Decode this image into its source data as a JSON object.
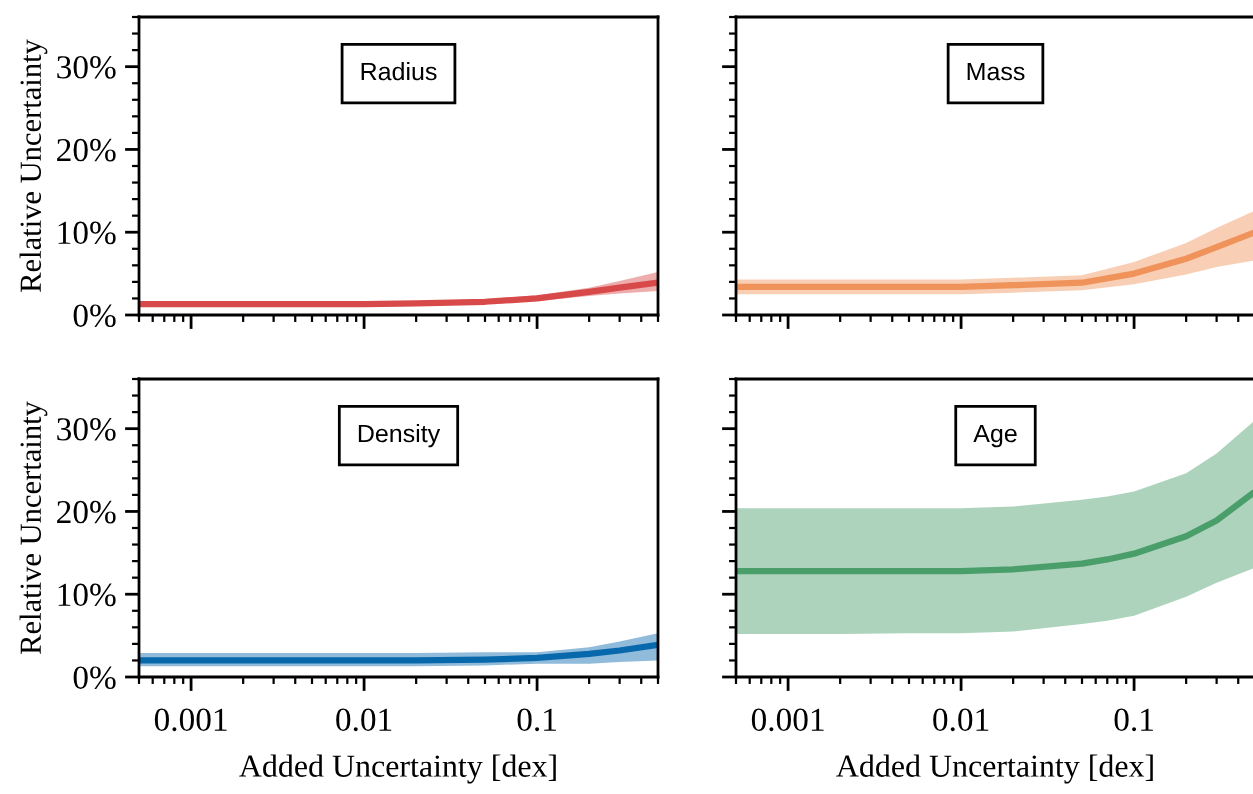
{
  "chart_data": [
    {
      "type": "line",
      "log": "x",
      "ylabel": "Relative Uncertainty",
      "annotations": [
        "Radius"
      ],
      "tick_labels": "y",
      "x": [
        0.0005,
        0.001,
        0.002,
        0.005,
        0.01,
        0.02,
        0.05,
        0.1,
        0.2,
        0.3,
        0.5
      ],
      "series": [
        {
          "color": "#d84a4a",
          "values": [
            1.3,
            1.3,
            1.3,
            1.3,
            1.3,
            1.4,
            1.6,
            2.0,
            2.8,
            3.3,
            3.9
          ],
          "lower": [
            1.0,
            1.0,
            1.0,
            1.0,
            1.0,
            1.1,
            1.3,
            1.7,
            2.3,
            2.6,
            2.9
          ],
          "upper": [
            1.6,
            1.6,
            1.6,
            1.6,
            1.6,
            1.7,
            1.9,
            2.4,
            3.3,
            4.1,
            5.2
          ]
        }
      ],
      "xlim": [
        0.0005,
        0.5
      ],
      "ylim": [
        0,
        36
      ],
      "xticks": [
        {
          "value": 0.001,
          "label": null
        },
        {
          "value": 0.01,
          "label": null
        },
        {
          "value": 0.1,
          "label": null
        }
      ],
      "yticks": [
        {
          "value": 0,
          "label": "0%"
        },
        {
          "value": 10,
          "label": "10%"
        },
        {
          "value": 20,
          "label": "20%"
        },
        {
          "value": 30,
          "label": "30%"
        }
      ]
    },
    {
      "type": "line",
      "log": "x",
      "annotations": [
        "Mass"
      ],
      "tick_labels": false,
      "x": [
        0.0005,
        0.001,
        0.002,
        0.005,
        0.01,
        0.02,
        0.05,
        0.1,
        0.2,
        0.3,
        0.5
      ],
      "series": [
        {
          "color": "#f0935a",
          "values": [
            3.4,
            3.4,
            3.4,
            3.4,
            3.4,
            3.6,
            3.9,
            5.0,
            6.8,
            8.2,
            10.0
          ],
          "lower": [
            2.5,
            2.5,
            2.5,
            2.5,
            2.5,
            2.7,
            3.0,
            3.7,
            4.9,
            5.8,
            6.6
          ],
          "upper": [
            4.3,
            4.3,
            4.3,
            4.3,
            4.3,
            4.5,
            4.8,
            6.4,
            8.7,
            10.5,
            12.6
          ]
        }
      ],
      "xlim": [
        0.0005,
        0.5
      ],
      "ylim": [
        0,
        36
      ],
      "xticks": [
        {
          "value": 0.001,
          "label": null
        },
        {
          "value": 0.01,
          "label": null
        },
        {
          "value": 0.1,
          "label": null
        }
      ],
      "yticks": [
        {
          "value": 0,
          "label": null
        },
        {
          "value": 10,
          "label": null
        },
        {
          "value": 20,
          "label": null
        },
        {
          "value": 30,
          "label": null
        }
      ]
    },
    {
      "type": "line",
      "log": "x",
      "xlabel": "Added Uncertainty [dex]",
      "ylabel": "Relative Uncertainty",
      "annotations": [
        "Density"
      ],
      "x": [
        0.0005,
        0.001,
        0.002,
        0.005,
        0.01,
        0.02,
        0.05,
        0.1,
        0.2,
        0.3,
        0.5
      ],
      "series": [
        {
          "color": "#0868ac",
          "values": [
            2.0,
            2.0,
            2.0,
            2.0,
            2.0,
            2.0,
            2.1,
            2.3,
            2.8,
            3.2,
            3.9
          ],
          "lower": [
            1.3,
            1.3,
            1.3,
            1.3,
            1.3,
            1.3,
            1.4,
            1.6,
            1.6,
            1.8,
            2.0
          ],
          "upper": [
            2.9,
            2.9,
            2.9,
            2.9,
            2.9,
            2.9,
            3.0,
            3.0,
            3.6,
            4.3,
            5.3
          ]
        }
      ],
      "xlim": [
        0.0005,
        0.5
      ],
      "ylim": [
        0,
        36
      ],
      "xticks": [
        0.001,
        0.01,
        0.1
      ],
      "yticks": [
        {
          "value": 0,
          "label": "0%"
        },
        {
          "value": 10,
          "label": "10%"
        },
        {
          "value": 20,
          "label": "20%"
        },
        {
          "value": 30,
          "label": "30%"
        }
      ]
    },
    {
      "type": "line",
      "log": "x",
      "xlabel": "Added Uncertainty [dex]",
      "annotations": [
        "Age"
      ],
      "tick_labels": "x",
      "x": [
        0.0005,
        0.001,
        0.002,
        0.005,
        0.01,
        0.02,
        0.05,
        0.07,
        0.1,
        0.2,
        0.3,
        0.5
      ],
      "series": [
        {
          "color": "#4a9e6a",
          "values": [
            12.8,
            12.8,
            12.8,
            12.8,
            12.8,
            13.0,
            13.7,
            14.2,
            14.9,
            17.0,
            18.9,
            22.4
          ],
          "lower": [
            5.2,
            5.2,
            5.2,
            5.3,
            5.3,
            5.5,
            6.4,
            6.8,
            7.4,
            9.7,
            11.4,
            13.2
          ],
          "upper": [
            20.4,
            20.4,
            20.4,
            20.4,
            20.4,
            20.6,
            21.4,
            21.8,
            22.4,
            24.6,
            27.0,
            31.0
          ]
        }
      ],
      "xlim": [
        0.0005,
        0.5
      ],
      "ylim": [
        0,
        36
      ],
      "xticks": [
        0.001,
        0.01,
        0.1
      ],
      "yticks": [
        {
          "value": 0,
          "label": null
        },
        {
          "value": 10,
          "label": null
        },
        {
          "value": 20,
          "label": null
        },
        {
          "value": 30,
          "label": null
        }
      ]
    }
  ]
}
